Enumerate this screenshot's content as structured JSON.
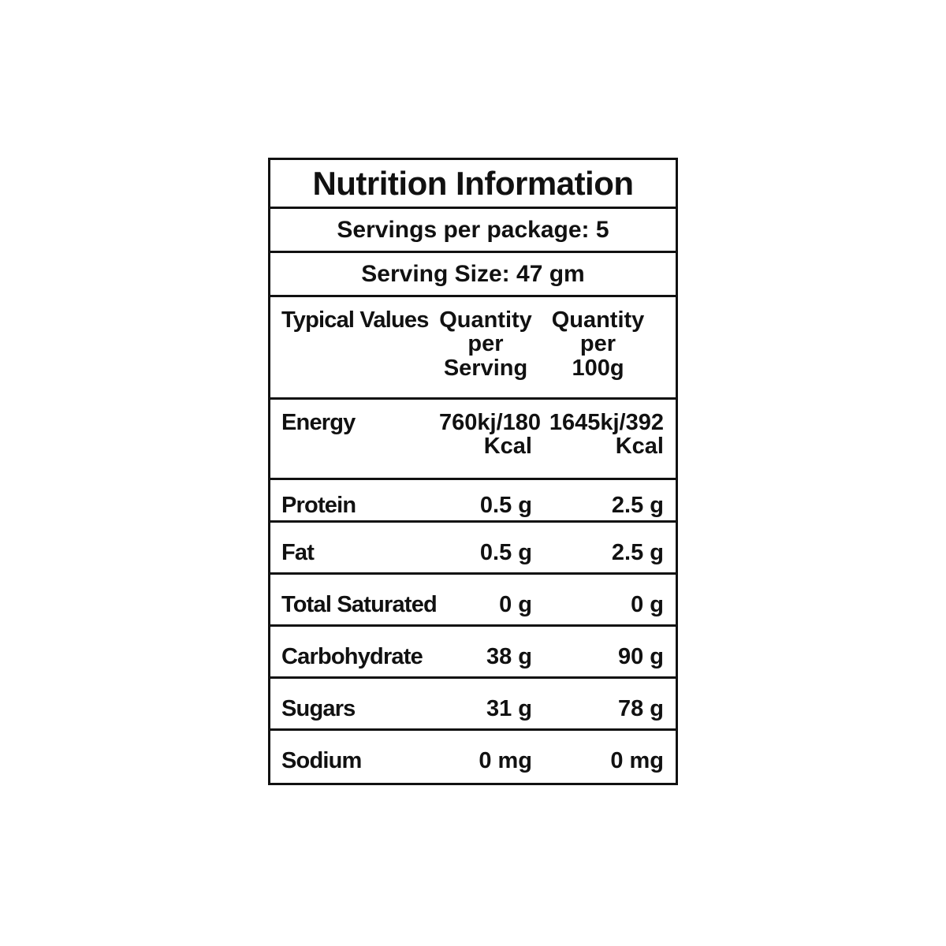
{
  "title": "Nutrition Information",
  "servings": "Servings per package: 5",
  "serving_size": "Serving Size: 47 gm",
  "table": {
    "header": [
      "Typical\nValues",
      "Quantity\nper\nServing",
      "Quantity\nper\n100g"
    ],
    "rows": [
      [
        "Energy",
        "760kj/180\nKcal",
        "1645kj/392\nKcal"
      ],
      [
        "Protein",
        "0.5 g",
        "2.5 g"
      ],
      [
        "Fat",
        "0.5 g",
        "2.5 g"
      ],
      [
        "Total Saturated",
        "0 g",
        "0 g"
      ],
      [
        "Carbohydrate",
        "38 g",
        "90 g"
      ],
      [
        "Sugars",
        "31 g",
        "78 g"
      ],
      [
        "Sodium",
        "0 mg",
        "0 mg"
      ]
    ]
  }
}
